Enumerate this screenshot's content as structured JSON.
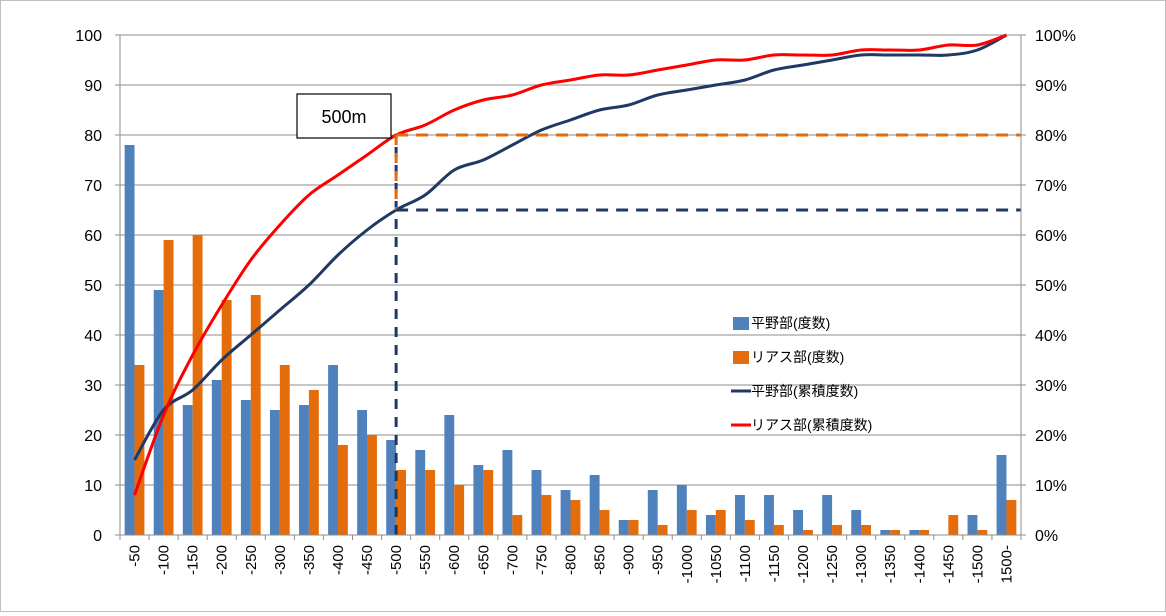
{
  "chart_data": {
    "type": "bar",
    "categories": [
      "-50",
      "-100",
      "-150",
      "-200",
      "-250",
      "-300",
      "-350",
      "-400",
      "-450",
      "-500",
      "-550",
      "-600",
      "-650",
      "-700",
      "-750",
      "-800",
      "-850",
      "-900",
      "-950",
      "-1000",
      "-1050",
      "-1100",
      "-1150",
      "-1200",
      "-1250",
      "-1300",
      "-1350",
      "-1400",
      "-1450",
      "-1500",
      "1500-"
    ],
    "series": [
      {
        "name": "平野部(度数)",
        "kind": "bar",
        "axis": "left",
        "color": "#4F81BD",
        "values": [
          78,
          49,
          26,
          31,
          27,
          25,
          26,
          34,
          25,
          19,
          17,
          24,
          14,
          17,
          13,
          9,
          12,
          3,
          9,
          10,
          4,
          8,
          8,
          5,
          8,
          5,
          1,
          1,
          0,
          4,
          16
        ]
      },
      {
        "name": "リアス部(度数)",
        "kind": "bar",
        "axis": "left",
        "color": "#E46C0A",
        "values": [
          34,
          59,
          60,
          47,
          48,
          34,
          29,
          18,
          20,
          13,
          13,
          10,
          13,
          4,
          8,
          7,
          5,
          3,
          2,
          5,
          5,
          3,
          2,
          1,
          2,
          2,
          1,
          1,
          4,
          1,
          7
        ]
      },
      {
        "name": "平野部(累積度数)",
        "kind": "line",
        "axis": "right",
        "color": "#1F3864",
        "values": [
          15,
          25,
          29,
          35,
          40,
          45,
          50,
          56,
          61,
          65,
          68,
          73,
          75,
          78,
          81,
          83,
          85,
          86,
          88,
          89,
          90,
          91,
          93,
          94,
          95,
          96,
          96,
          96,
          96,
          97,
          100
        ]
      },
      {
        "name": "リアス部(累積度数)",
        "kind": "line",
        "axis": "right",
        "color": "#FF0000",
        "values": [
          8,
          24,
          36,
          46,
          55,
          62,
          68,
          72,
          76,
          80,
          82,
          85,
          87,
          88,
          90,
          91,
          92,
          92,
          93,
          94,
          95,
          95,
          96,
          96,
          96,
          97,
          97,
          97,
          98,
          98,
          100
        ]
      }
    ],
    "ylim_left": [
      0,
      100
    ],
    "yticks_left": [
      "0",
      "10",
      "20",
      "30",
      "40",
      "50",
      "60",
      "70",
      "80",
      "90",
      "100"
    ],
    "ylim_right": [
      0,
      100
    ],
    "yticks_right": [
      "0%",
      "10%",
      "20%",
      "30%",
      "40%",
      "50%",
      "60%",
      "70%",
      "80%",
      "90%",
      "100%"
    ],
    "grid": true,
    "legend_position": "right-middle",
    "annotation": {
      "label": "500m",
      "category": "-500",
      "orange_level": 80,
      "navy_level": 65
    }
  }
}
